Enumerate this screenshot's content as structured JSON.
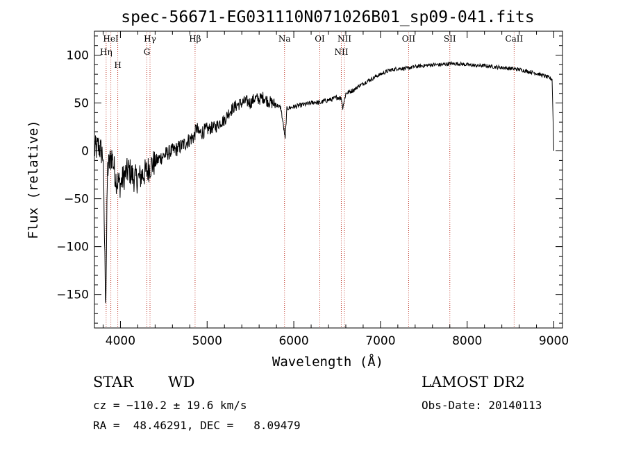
{
  "chart_data": {
    "type": "line",
    "title": "spec-56671-EG031110N071026B01_sp09-041.fits",
    "xlabel": "Wavelength (Å)",
    "ylabel": "Flux (relative)",
    "xlim": [
      3700,
      9100
    ],
    "ylim": [
      -185,
      125
    ],
    "xticks": [
      4000,
      5000,
      6000,
      7000,
      8000,
      9000
    ],
    "yticks": [
      -150,
      -100,
      -50,
      0,
      50,
      100
    ],
    "x_tick_labels": [
      "4000",
      "5000",
      "6000",
      "7000",
      "8000",
      "9000"
    ],
    "y_tick_labels": [
      "−150",
      "−100",
      "−50",
      "0",
      "50",
      "100"
    ],
    "grid": false,
    "series": [
      {
        "color": "#000000",
        "x": [
          3700,
          3750,
          3800,
          3830,
          3850,
          3880,
          3900,
          3950,
          4000,
          4050,
          4100,
          4150,
          4200,
          4250,
          4300,
          4350,
          4400,
          4450,
          4500,
          4550,
          4600,
          4650,
          4700,
          4750,
          4800,
          4850,
          4880,
          4900,
          4950,
          5000,
          5050,
          5100,
          5150,
          5200,
          5250,
          5300,
          5350,
          5400,
          5450,
          5500,
          5550,
          5600,
          5650,
          5700,
          5750,
          5800,
          5850,
          5890,
          5900,
          5920,
          5950,
          6000,
          6050,
          6100,
          6150,
          6200,
          6250,
          6300,
          6350,
          6400,
          6450,
          6500,
          6550,
          6563,
          6600,
          6650,
          6700,
          6750,
          6800,
          6850,
          6900,
          6950,
          7000,
          7100,
          7200,
          7300,
          7400,
          7500,
          7600,
          7700,
          7800,
          7900,
          8000,
          8100,
          8200,
          8300,
          8400,
          8500,
          8600,
          8700,
          8800,
          8900,
          8980,
          9000
        ],
        "y": [
          0,
          5,
          -5,
          -170,
          -20,
          -10,
          -5,
          -30,
          -35,
          -25,
          -20,
          -28,
          -30,
          -25,
          -22,
          -15,
          -12,
          -8,
          -5,
          -2,
          0,
          2,
          5,
          8,
          12,
          15,
          25,
          18,
          20,
          22,
          24,
          25,
          30,
          32,
          40,
          45,
          48,
          50,
          52,
          50,
          55,
          54,
          56,
          52,
          50,
          48,
          45,
          20,
          12,
          44,
          45,
          46,
          47,
          48,
          49,
          50,
          51,
          50,
          52,
          53,
          54,
          56,
          55,
          45,
          60,
          62,
          64,
          68,
          70,
          73,
          75,
          78,
          80,
          84,
          86,
          86,
          88,
          89,
          90,
          90,
          91,
          91,
          90,
          89,
          89,
          88,
          87,
          86,
          85,
          83,
          81,
          78,
          75,
          0
        ]
      }
    ],
    "spectral_lines": [
      {
        "label": "HeI",
        "wavelength": 3889
      },
      {
        "label": "Hη",
        "wavelength": 3835
      },
      {
        "label": "H",
        "wavelength": 3969
      },
      {
        "label": "Hγ",
        "wavelength": 4341
      },
      {
        "label": "G",
        "wavelength": 4305
      },
      {
        "label": "Hβ",
        "wavelength": 4861
      },
      {
        "label": "Na",
        "wavelength": 5893
      },
      {
        "label": "OI",
        "wavelength": 6300
      },
      {
        "label": "NII",
        "wavelength": 6584
      },
      {
        "label": "NII",
        "wavelength": 6548
      },
      {
        "label": "OII",
        "wavelength": 7325
      },
      {
        "label": "SII",
        "wavelength": 7800
      },
      {
        "label": "CaII",
        "wavelength": 8542
      }
    ]
  },
  "info": {
    "object_class": "STAR",
    "subclass": "WD",
    "survey": "LAMOST DR2",
    "cz": "cz = −110.2 ± 19.6 km/s",
    "obs_date": "Obs-Date: 20140113",
    "coords": "RA =  48.46291, DEC =   8.09479"
  }
}
